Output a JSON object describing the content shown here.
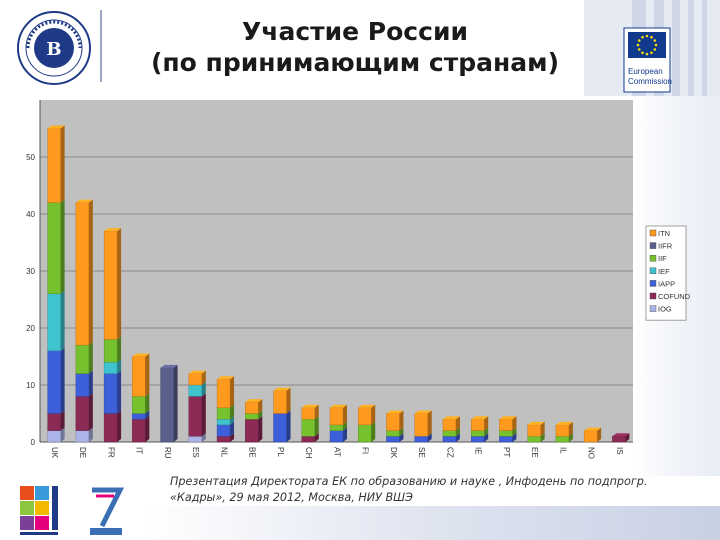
{
  "header": {
    "title_line1": "Участие России",
    "title_line2": "(по принимающим странам)",
    "hse_logo": {
      "icon": "hse-seal-icon",
      "color": "#1f3b87"
    },
    "ec_logo": {
      "icon": "eu-flag-icon",
      "line1": "European",
      "line2": "Commission",
      "color": "#123a8c",
      "star_color": "#ffdd00"
    }
  },
  "footer": {
    "line1": "Презентация Директората ЕК по образованию и науке , Инфодень по подпрогр.",
    "line2": "«Кадры», 29 мая 2012, Москва, НИУ ВШЭ",
    "logos": [
      "marie-curie-actions-logo",
      "fp7-people-logo"
    ]
  },
  "chart_data": {
    "type": "bar",
    "stacked": true,
    "categories": [
      "UK",
      "DE",
      "FR",
      "IT",
      "RU",
      "ES",
      "NL",
      "BE",
      "PL",
      "CH",
      "AT",
      "FI",
      "DK",
      "SE",
      "CZ",
      "IE",
      "PT",
      "EE",
      "IL",
      "NO",
      "IS"
    ],
    "series": [
      {
        "name": "IOG",
        "color": "#aab4e6",
        "values": [
          2,
          2,
          0,
          0,
          0,
          1,
          0,
          0,
          0,
          0,
          0,
          0,
          0,
          0,
          0,
          0,
          0,
          0,
          0,
          0,
          0
        ]
      },
      {
        "name": "COFUND",
        "color": "#8c2a56",
        "values": [
          3,
          6,
          5,
          4,
          0,
          7,
          1,
          4,
          0,
          1,
          0,
          0,
          0,
          0,
          0,
          0,
          0,
          0,
          0,
          0,
          1
        ]
      },
      {
        "name": "IAPP",
        "color": "#3d5fd9",
        "values": [
          11,
          4,
          7,
          1,
          0,
          0,
          2,
          0,
          5,
          0,
          2,
          0,
          1,
          1,
          1,
          1,
          1,
          0,
          0,
          0,
          0
        ]
      },
      {
        "name": "IEF",
        "color": "#3fc4cf",
        "values": [
          10,
          0,
          2,
          0,
          0,
          2,
          1,
          0,
          0,
          0,
          0,
          0,
          0,
          0,
          0,
          0,
          0,
          0,
          0,
          0,
          0
        ]
      },
      {
        "name": "IIF",
        "color": "#76c22e",
        "values": [
          16,
          5,
          4,
          3,
          0,
          0,
          2,
          1,
          0,
          3,
          1,
          3,
          1,
          0,
          1,
          1,
          1,
          1,
          1,
          0,
          0
        ]
      },
      {
        "name": "IIFR",
        "color": "#5b5f8c",
        "values": [
          0,
          0,
          0,
          0,
          13,
          0,
          0,
          0,
          0,
          0,
          0,
          0,
          0,
          0,
          0,
          0,
          0,
          0,
          0,
          0,
          0
        ]
      },
      {
        "name": "ITN",
        "color": "#ff9a1f",
        "values": [
          13,
          25,
          19,
          7,
          0,
          2,
          5,
          2,
          4,
          2,
          3,
          3,
          3,
          4,
          2,
          2,
          2,
          2,
          2,
          2,
          0
        ]
      }
    ],
    "legend_order": [
      "ITN",
      "IIFR",
      "IIF",
      "IEF",
      "IAPP",
      "COFUND",
      "IOG"
    ],
    "title": "",
    "xlabel": "",
    "ylabel": "",
    "ylim": [
      0,
      60
    ],
    "yticks": [
      0,
      10,
      20,
      30,
      40,
      50
    ],
    "grid": true,
    "legend_position": "right",
    "plot_background": "#c0c0c0"
  }
}
